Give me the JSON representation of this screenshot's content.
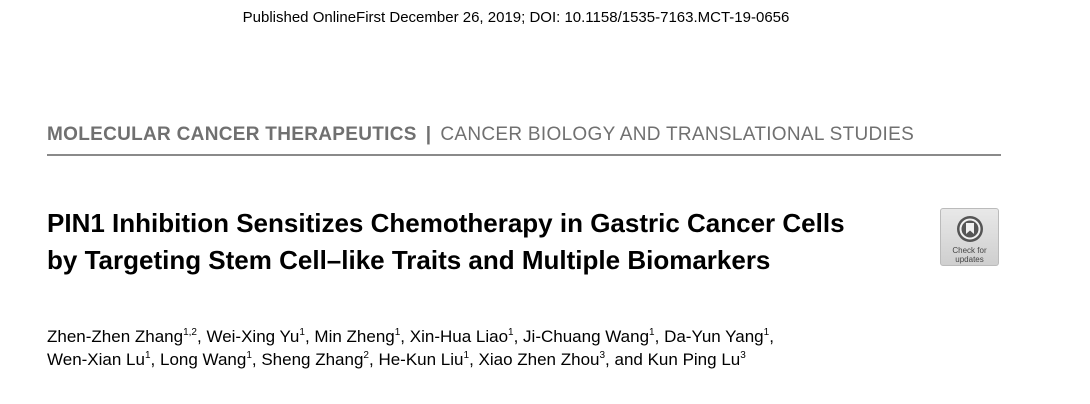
{
  "header": {
    "published_line": "Published OnlineFirst December 26, 2019; DOI: 10.1158/1535-7163.MCT-19-0656"
  },
  "journal": {
    "name": "MOLECULAR CANCER THERAPEUTICS",
    "separator": "|",
    "section": "CANCER BIOLOGY AND TRANSLATIONAL STUDIES"
  },
  "article": {
    "title": "PIN1 Inhibition Sensitizes Chemotherapy in Gastric Cancer Cells by Targeting Stem Cell–like Traits and Multiple Biomarkers"
  },
  "badge": {
    "line1": "Check for",
    "line2": "updates",
    "icon": "check-for-updates-icon"
  },
  "authors": [
    {
      "name": "Zhen-Zhen Zhang",
      "aff": "1,2"
    },
    {
      "name": "Wei-Xing Yu",
      "aff": "1"
    },
    {
      "name": "Min Zheng",
      "aff": "1"
    },
    {
      "name": "Xin-Hua Liao",
      "aff": "1"
    },
    {
      "name": "Ji-Chuang Wang",
      "aff": "1"
    },
    {
      "name": "Da-Yun Yang",
      "aff": "1"
    },
    {
      "name": "Wen-Xian Lu",
      "aff": "1"
    },
    {
      "name": "Long Wang",
      "aff": "1"
    },
    {
      "name": "Sheng Zhang",
      "aff": "2"
    },
    {
      "name": "He-Kun Liu",
      "aff": "1"
    },
    {
      "name": "Xiao Zhen Zhou",
      "aff": "3"
    },
    {
      "name": "Kun Ping Lu",
      "aff": "3"
    }
  ],
  "colors": {
    "journal_gray": "#707070",
    "rule_gray": "#8a8a8a"
  }
}
